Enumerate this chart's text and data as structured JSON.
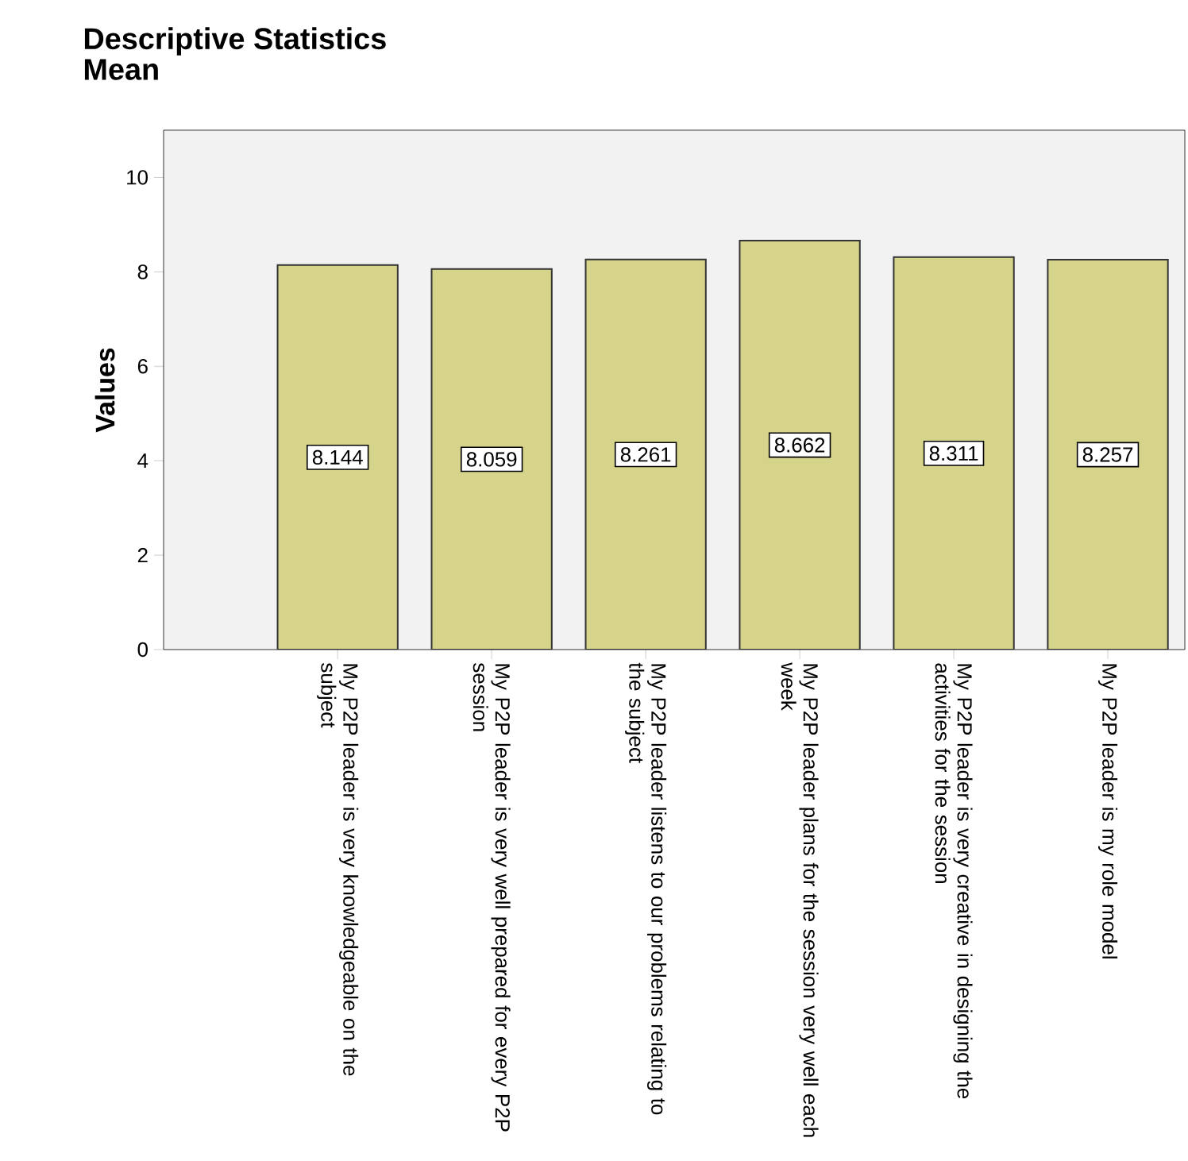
{
  "chart_data": {
    "type": "bar",
    "title": "Descriptive Statistics",
    "subtitle": "Mean",
    "ylabel": "Values",
    "categories": [
      "My P2P leader is very knowledgeable on the subject",
      "My P2P leader is very well prepared for every P2P session",
      "My P2P leader listens to our problems relating to the subject",
      "My P2P leader plans for the session very well each week",
      "My P2P leader is very creative in designing the activities for the session",
      "My P2P leader is my role model"
    ],
    "values": [
      8.144,
      8.059,
      8.261,
      8.662,
      8.311,
      8.257
    ],
    "color": "#d6d38a",
    "ylim": [
      0,
      11
    ],
    "yticks": [
      0,
      2,
      4,
      6,
      8,
      10
    ],
    "data_labels": true
  }
}
